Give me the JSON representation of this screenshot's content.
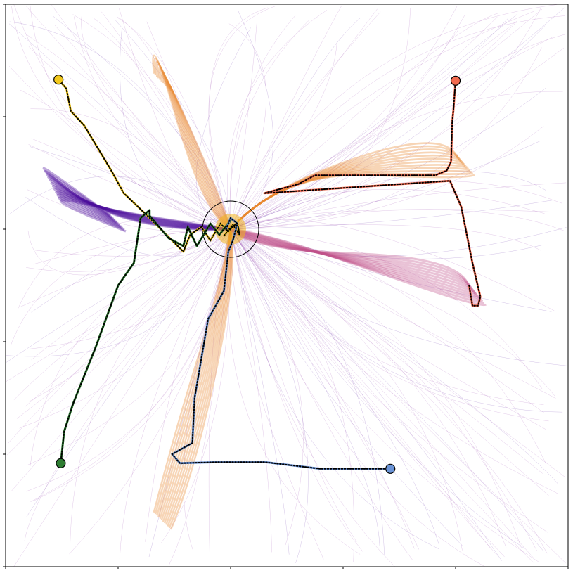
{
  "chart_data": {
    "type": "line",
    "title": "",
    "xlabel": "",
    "ylabel": "",
    "xlim": [
      -2,
      3
    ],
    "ylim": [
      -3,
      2
    ],
    "xticks": [
      -2,
      -1,
      0,
      1,
      2,
      3
    ],
    "yticks": [
      -3,
      -2,
      -1,
      0,
      1,
      2
    ],
    "tick_labels_shown": false,
    "grid": false,
    "legend": "none",
    "target": {
      "center": [
        0,
        0
      ],
      "radius": 0.25,
      "edge_color": "#000000"
    },
    "background": {
      "description_colormap": "plasma",
      "colors": [
        "#4b0b9b",
        "#8a2aa3",
        "#c0508a",
        "#e8862e",
        "#f2b51e"
      ]
    },
    "series": [
      {
        "color": "#f2c81d",
        "start": [
          -1.53,
          1.33
        ],
        "points": [
          [
            -1.53,
            1.33
          ],
          [
            -1.46,
            1.25
          ],
          [
            -1.42,
            1.05
          ],
          [
            -1.3,
            0.92
          ],
          [
            -1.06,
            0.52
          ],
          [
            -0.95,
            0.32
          ],
          [
            -0.74,
            0.12
          ],
          [
            -0.42,
            -0.2
          ],
          [
            -0.36,
            -0.05
          ],
          [
            -0.26,
            0.02
          ],
          [
            -0.18,
            -0.1
          ],
          [
            -0.09,
            0.05
          ],
          [
            -0.02,
            -0.02
          ],
          [
            0.06,
            0.06
          ],
          [
            0.08,
            -0.05
          ],
          [
            0.02,
            0.04
          ],
          [
            -0.06,
            -0.06
          ]
        ]
      },
      {
        "color": "#f26a4f",
        "start": [
          2.0,
          1.32
        ],
        "points": [
          [
            2.0,
            1.32
          ],
          [
            1.98,
            1.05
          ],
          [
            1.97,
            0.95
          ],
          [
            1.96,
            0.6
          ],
          [
            1.92,
            0.52
          ],
          [
            1.82,
            0.48
          ],
          [
            1.2,
            0.48
          ],
          [
            0.75,
            0.48
          ],
          [
            0.6,
            0.4
          ],
          [
            0.3,
            0.32
          ],
          [
            1.95,
            0.43
          ],
          [
            2.05,
            0.2
          ],
          [
            2.15,
            -0.3
          ],
          [
            2.22,
            -0.6
          ],
          [
            2.2,
            -0.68
          ],
          [
            2.15,
            -0.68
          ],
          [
            2.12,
            -0.5
          ]
        ]
      },
      {
        "color": "#2e7d32",
        "start": [
          -1.51,
          -2.08
        ],
        "points": [
          [
            -1.51,
            -2.08
          ],
          [
            -1.48,
            -1.8
          ],
          [
            -1.4,
            -1.55
          ],
          [
            -1.2,
            -1.05
          ],
          [
            -1.0,
            -0.5
          ],
          [
            -0.86,
            -0.3
          ],
          [
            -0.8,
            0.1
          ],
          [
            -0.72,
            0.17
          ],
          [
            -0.72,
            0.12
          ],
          [
            -0.55,
            -0.08
          ],
          [
            -0.42,
            -0.15
          ],
          [
            -0.38,
            0.02
          ],
          [
            -0.3,
            -0.15
          ],
          [
            -0.18,
            0.05
          ],
          [
            -0.1,
            -0.05
          ],
          [
            0.0,
            0.08
          ],
          [
            -0.05,
            0.0
          ]
        ]
      },
      {
        "color": "#6a93d6",
        "start": [
          1.42,
          -2.13
        ],
        "points": [
          [
            1.42,
            -2.13
          ],
          [
            1.1,
            -2.13
          ],
          [
            0.8,
            -2.13
          ],
          [
            0.3,
            -2.07
          ],
          [
            -0.1,
            -2.07
          ],
          [
            -0.45,
            -2.08
          ],
          [
            -0.52,
            -2.0
          ],
          [
            -0.34,
            -1.9
          ],
          [
            -0.32,
            -1.5
          ],
          [
            -0.2,
            -0.8
          ],
          [
            -0.06,
            -0.55
          ],
          [
            -0.02,
            -0.2
          ],
          [
            0.02,
            -0.1
          ],
          [
            0.06,
            0.05
          ],
          [
            0.0,
            0.1
          ],
          [
            -0.04,
            0.0
          ]
        ]
      }
    ]
  }
}
